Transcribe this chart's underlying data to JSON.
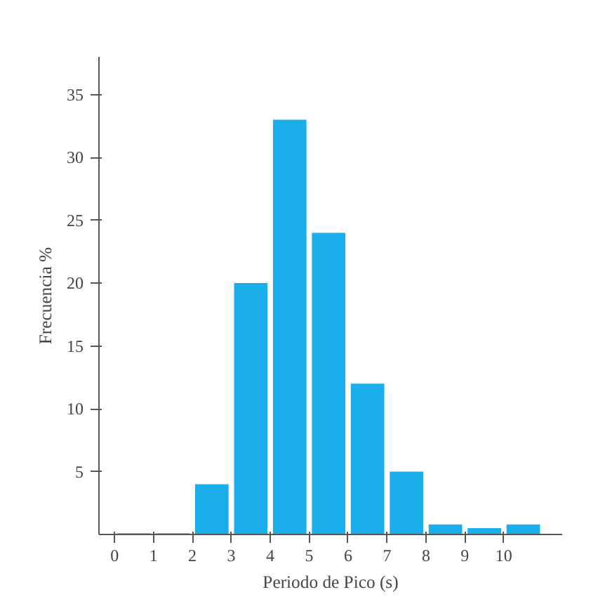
{
  "chart_data": {
    "type": "histogram",
    "xlabel": "Periodo de Pico (s)",
    "ylabel": "Frecuencia %",
    "bins": [
      0,
      1,
      2,
      3,
      4,
      5,
      6,
      7,
      8,
      9,
      10,
      11
    ],
    "values": [
      0.1,
      0.1,
      4,
      20,
      33,
      24,
      12,
      5,
      0.8,
      0.5,
      0.8
    ],
    "color": "#1aaeea",
    "xlim": [
      -0.4,
      11.5
    ],
    "ylim": [
      0,
      38
    ],
    "xticks": [
      0,
      1,
      2,
      3,
      4,
      5,
      6,
      7,
      8,
      9,
      10
    ],
    "yticks": [
      5,
      10,
      15,
      20,
      25,
      30,
      35
    ],
    "grid": false
  }
}
